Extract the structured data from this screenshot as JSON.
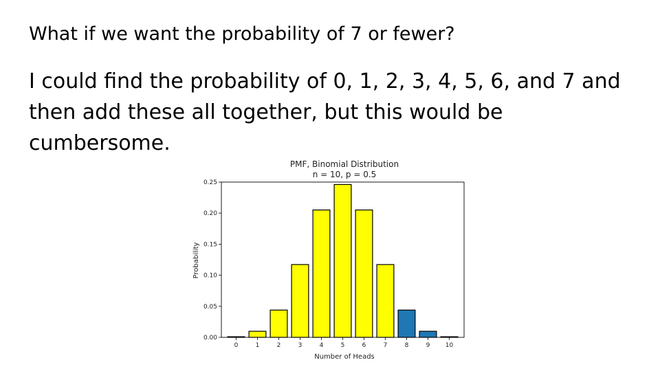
{
  "slide": {
    "heading": "What if we want the probability of 7 or fewer?",
    "body": "I could find the probability of 0, 1, 2, 3, 4, 5, 6, and 7 and then add these all together, but this would be cumbersome."
  },
  "colors": {
    "highlight_bar": "#ffff00",
    "default_bar": "#1f77b4",
    "bar_edge": "#000000"
  },
  "chart_data": {
    "type": "bar",
    "title": "PMF, Binomial Distribution",
    "subtitle": "n = 10, p = 0.5",
    "xlabel": "Number of Heads",
    "ylabel": "Probability",
    "categories": [
      "0",
      "1",
      "2",
      "3",
      "4",
      "5",
      "6",
      "7",
      "8",
      "9",
      "10"
    ],
    "values": [
      0.001,
      0.0098,
      0.0439,
      0.1172,
      0.2051,
      0.2461,
      0.2051,
      0.1172,
      0.0439,
      0.0098,
      0.001
    ],
    "highlighted": [
      true,
      true,
      true,
      true,
      true,
      true,
      true,
      true,
      false,
      false,
      false
    ],
    "ylim": [
      0,
      0.25
    ],
    "yticks": [
      "0.00",
      "0.05",
      "0.10",
      "0.15",
      "0.20",
      "0.25"
    ],
    "grid": false
  }
}
